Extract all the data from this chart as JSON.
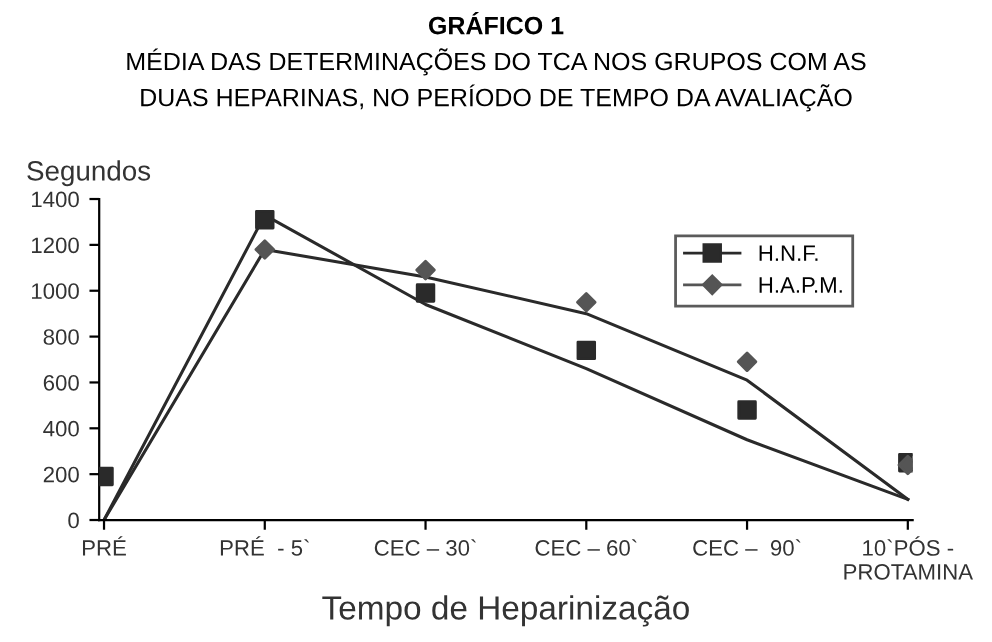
{
  "chart_data": {
    "type": "scatter",
    "title": "GRÁFICO 1",
    "subtitle": "MÉDIA DAS DETERMINAÇÕES DO TCA NOS GRUPOS COM AS\nDUAS HEPARINAS, NO PERÍODO DE TEMPO DA AVALIAÇÃO",
    "xlabel": "Tempo de Heparinização",
    "ylabel": "Segundos",
    "categories": [
      "PRÉ",
      "PRÉ  - 5`",
      "CEC – 30`",
      "CEC – 60`",
      "CEC –  90`",
      "10`PÓS -\nPROTAMINA"
    ],
    "series": [
      {
        "name": "H.N.F.",
        "marker": "square",
        "color": "#2a2a2a",
        "values": [
          190,
          1310,
          990,
          740,
          480,
          250
        ]
      },
      {
        "name": "H.A.P.M.",
        "marker": "diamond",
        "color": "#555555",
        "values": [
          null,
          1180,
          1090,
          950,
          690,
          240
        ]
      },
      {
        "type": "line",
        "marker": "none",
        "color": "#2a2a2a",
        "values": [
          0,
          1330,
          940,
          660,
          350,
          90
        ]
      },
      {
        "type": "line",
        "marker": "none",
        "color": "#2a2a2a",
        "values": [
          0,
          1180,
          1060,
          900,
          610,
          90
        ]
      }
    ],
    "ylim": [
      0,
      1400
    ],
    "yticks": [
      0,
      200,
      400,
      600,
      800,
      1000,
      1200,
      1400
    ],
    "grid": false,
    "legend": "top right"
  }
}
